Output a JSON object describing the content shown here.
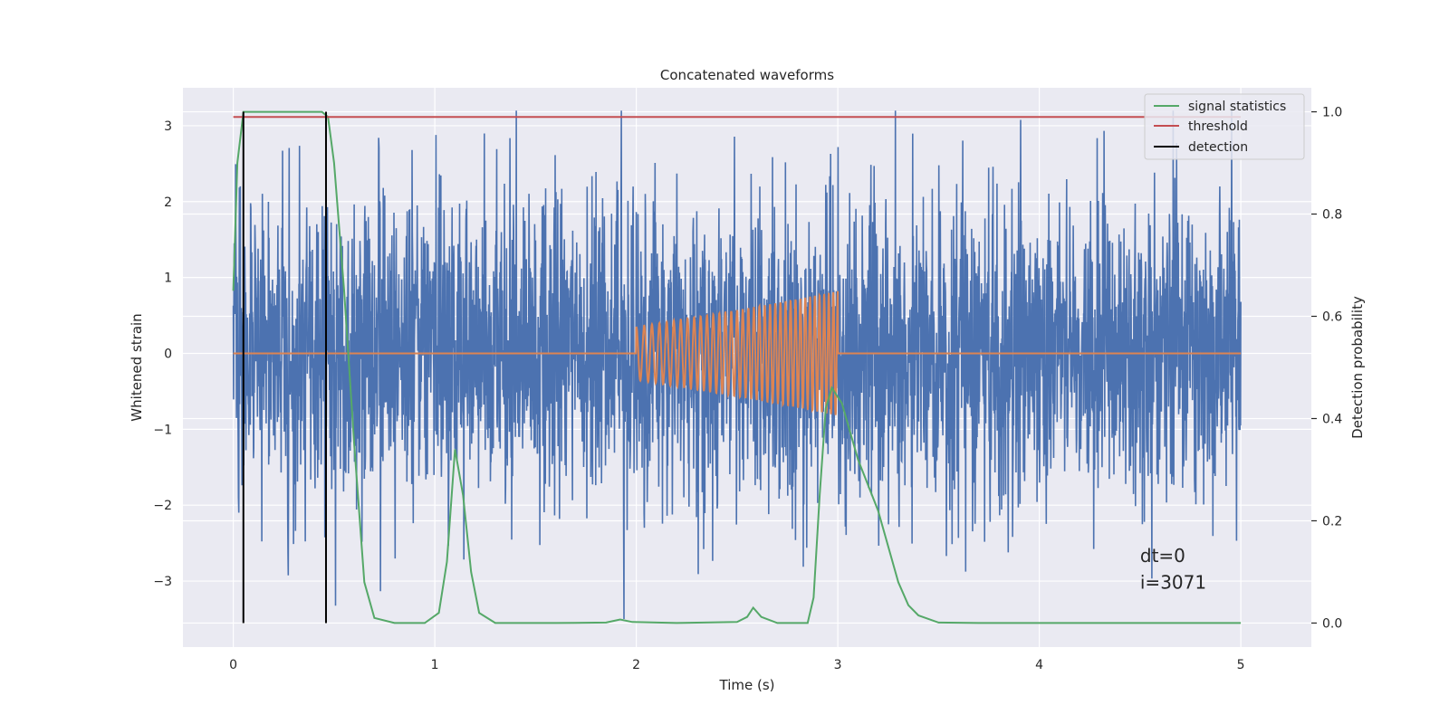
{
  "chart_data": {
    "type": "line",
    "title": "Concatenated waveforms",
    "xlabel": "Time (s)",
    "ylabel": "Whitened strain",
    "ylabel_right": "Detection probability",
    "xlim": [
      -0.25,
      5.35
    ],
    "ylim": [
      -3.87,
      3.5
    ],
    "ylim_right": [
      -0.047,
      1.047
    ],
    "x_ticks": [
      0,
      1,
      2,
      3,
      4,
      5
    ],
    "x_tick_labels": [
      "0",
      "1",
      "2",
      "3",
      "4",
      "5"
    ],
    "y_ticks": [
      -3,
      -2,
      -1,
      0,
      1,
      2,
      3
    ],
    "y_tick_labels": [
      "−3",
      "−2",
      "−1",
      "0",
      "1",
      "2",
      "3"
    ],
    "y_right_ticks": [
      0.0,
      0.2,
      0.4,
      0.6,
      0.8,
      1.0
    ],
    "y_right_tick_labels": [
      "0.0",
      "0.2",
      "0.4",
      "0.6",
      "0.8",
      "1.0"
    ],
    "grid": true,
    "legend_position": "top-right",
    "series": [
      {
        "name": "",
        "axis": "left",
        "color": "#4c72b0",
        "description_values": "whitened noise, amplitude roughly within ±3.2, 5 seconds",
        "x_range": [
          0,
          5
        ],
        "approx_std": 1.0
      },
      {
        "name": "",
        "axis": "left",
        "color": "#dd8452",
        "x": [
          0,
          2,
          2.25,
          2.5,
          2.75,
          3,
          3.001,
          5
        ],
        "amplitude": [
          0,
          0.35,
          0.46,
          0.57,
          0.69,
          0.82,
          0,
          0
        ],
        "chirp_start": 2.0,
        "chirp_end": 3.0,
        "freq_start_hz": 25,
        "freq_end_hz": 45
      },
      {
        "name": "signal statistics",
        "axis": "right",
        "color": "#55a868",
        "x": [
          0.0,
          0.02,
          0.05,
          0.08,
          0.15,
          0.3,
          0.44,
          0.47,
          0.5,
          0.55,
          0.6,
          0.65,
          0.7,
          0.8,
          0.95,
          1.02,
          1.06,
          1.1,
          1.14,
          1.18,
          1.22,
          1.3,
          1.6,
          1.85,
          1.92,
          1.98,
          2.2,
          2.5,
          2.55,
          2.58,
          2.62,
          2.7,
          2.85,
          2.88,
          2.91,
          2.94,
          2.97,
          3.02,
          3.1,
          3.2,
          3.3,
          3.35,
          3.4,
          3.5,
          3.7,
          4.2,
          5.0
        ],
        "y": [
          0.65,
          0.9,
          1.0,
          1.0,
          1.0,
          1.0,
          1.0,
          0.99,
          0.9,
          0.65,
          0.35,
          0.08,
          0.01,
          0.0,
          0.0,
          0.02,
          0.12,
          0.34,
          0.25,
          0.1,
          0.02,
          0.0,
          0.0,
          0.001,
          0.007,
          0.002,
          0.0,
          0.002,
          0.012,
          0.03,
          0.012,
          0.0,
          0.0,
          0.05,
          0.25,
          0.42,
          0.46,
          0.43,
          0.32,
          0.22,
          0.08,
          0.035,
          0.015,
          0.001,
          0.0,
          0.0,
          0.0
        ]
      },
      {
        "name": "threshold",
        "axis": "right",
        "color": "#c44e52",
        "x": [
          0,
          5
        ],
        "y": [
          0.99,
          0.99
        ]
      },
      {
        "name": "detection",
        "axis": "right",
        "color": "#000000",
        "type": "vertical-lines",
        "x": [
          0.05,
          0.46
        ],
        "y_range": [
          0.0,
          1.0
        ]
      }
    ],
    "annotations": [
      {
        "text": "dt=0",
        "x": 4.5,
        "y": -2.75
      },
      {
        "text": "i=3071",
        "x": 4.5,
        "y": -3.1
      }
    ]
  }
}
